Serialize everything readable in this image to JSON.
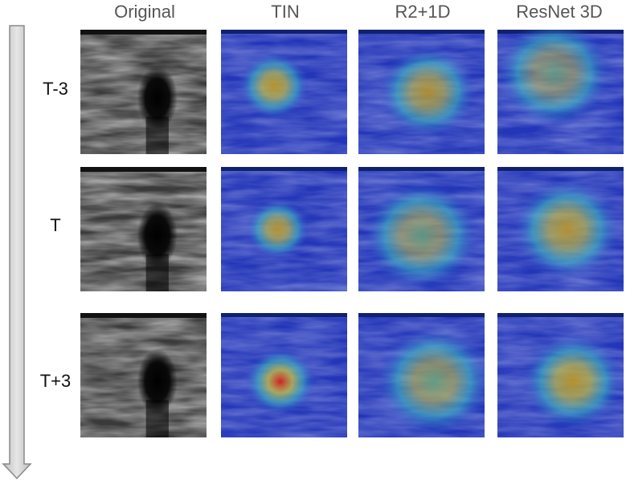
{
  "columns": [
    "Original",
    "TIN",
    "R2+1D",
    "ResNet 3D"
  ],
  "rows": [
    "T-3",
    "T",
    "T+3"
  ],
  "panels": [
    [
      {
        "type": "ultrasound"
      },
      {
        "type": "heatmap",
        "hot": {
          "cx": 0.42,
          "cy": 0.45,
          "r": 0.28,
          "level": 0.8
        }
      },
      {
        "type": "heatmap",
        "hot": {
          "cx": 0.55,
          "cy": 0.5,
          "r": 0.38,
          "level": 0.65
        }
      },
      {
        "type": "heatmap",
        "hot": {
          "cx": 0.45,
          "cy": 0.35,
          "r": 0.45,
          "level": 0.35
        }
      }
    ],
    [
      {
        "type": "ultrasound"
      },
      {
        "type": "heatmap",
        "hot": {
          "cx": 0.45,
          "cy": 0.5,
          "r": 0.25,
          "level": 0.7
        }
      },
      {
        "type": "heatmap",
        "hot": {
          "cx": 0.5,
          "cy": 0.55,
          "r": 0.45,
          "level": 0.45
        }
      },
      {
        "type": "heatmap",
        "hot": {
          "cx": 0.55,
          "cy": 0.5,
          "r": 0.42,
          "level": 0.7
        }
      }
    ],
    [
      {
        "type": "ultrasound"
      },
      {
        "type": "heatmap",
        "hot": {
          "cx": 0.47,
          "cy": 0.55,
          "r": 0.28,
          "level": 1.0
        }
      },
      {
        "type": "heatmap",
        "hot": {
          "cx": 0.6,
          "cy": 0.55,
          "r": 0.45,
          "level": 0.55
        }
      },
      {
        "type": "heatmap",
        "hot": {
          "cx": 0.6,
          "cy": 0.55,
          "r": 0.4,
          "level": 0.8
        }
      }
    ]
  ]
}
